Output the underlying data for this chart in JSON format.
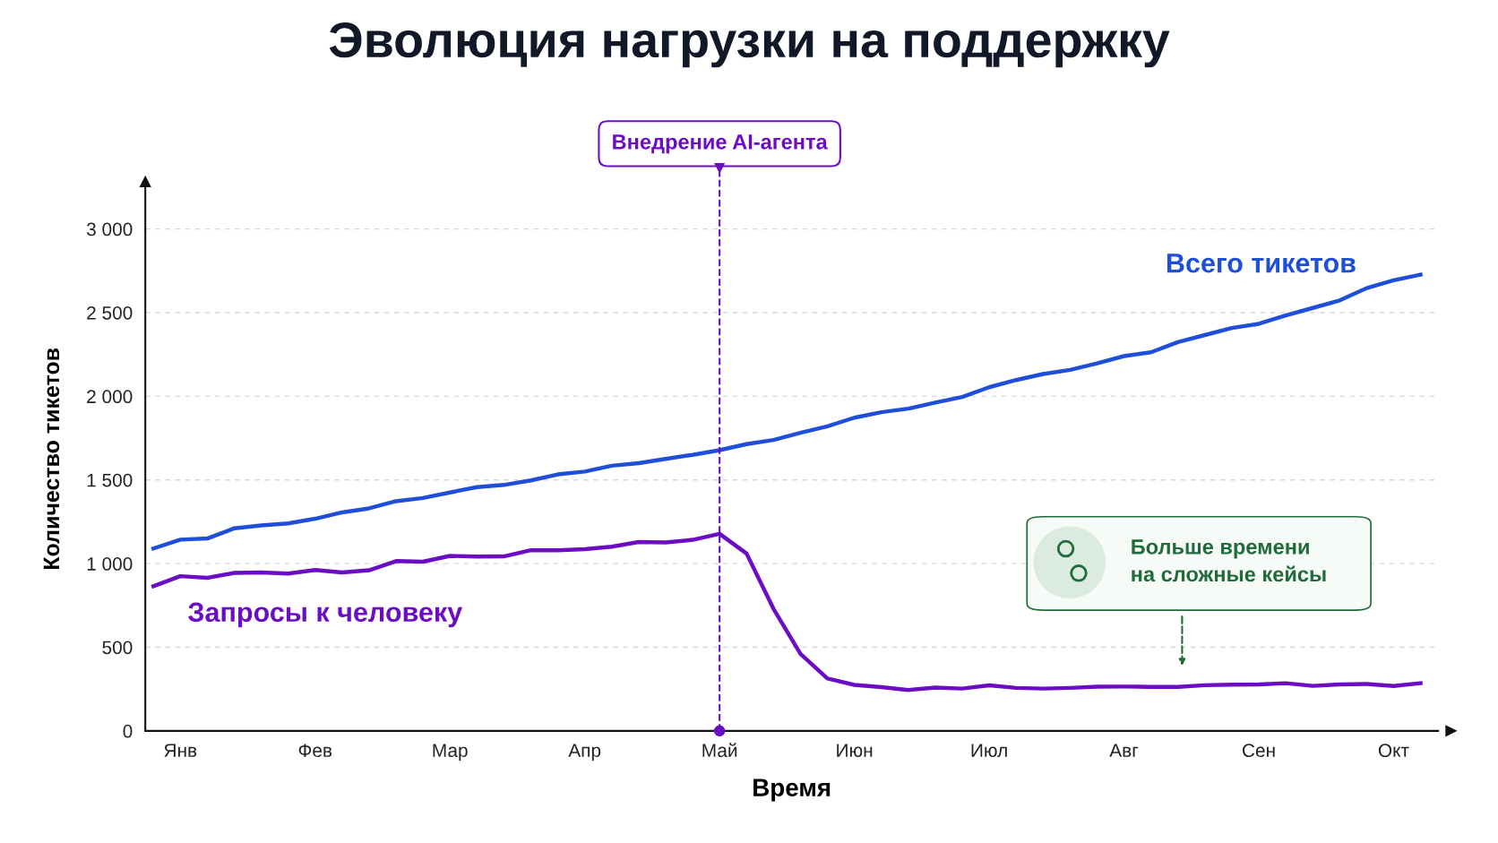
{
  "chart_data": {
    "type": "line",
    "title": "Эволюция нагрузки на поддержку",
    "xlabel": "Время",
    "ylabel": "Количество тикетов",
    "categories": [
      null,
      "Янв",
      null,
      null,
      null,
      null,
      "Фев",
      null,
      null,
      null,
      null,
      "Мар",
      null,
      null,
      null,
      null,
      "Апр",
      null,
      null,
      null,
      null,
      "Май",
      null,
      null,
      null,
      null,
      "Июн",
      null,
      null,
      null,
      null,
      "Июл",
      null,
      null,
      null,
      null,
      "Авг",
      null,
      null,
      null,
      null,
      "Сен",
      null,
      null,
      null,
      null,
      "Окт",
      null
    ],
    "ylim": [
      0,
      3250
    ],
    "yticks": [
      0,
      500,
      {
        "value": 1000,
        "label": "1 000"
      },
      {
        "value": 1500,
        "label": "1 500"
      },
      {
        "value": 2000,
        "label": "2 000"
      },
      {
        "value": 2500,
        "label": "2 500"
      },
      {
        "value": 3000,
        "label": "3 000"
      }
    ],
    "grid": "y",
    "legend": false,
    "marker": "none",
    "line_style": "solid",
    "series": [
      {
        "name": "Всего тикетов",
        "color": "#1f4fd8",
        "values": [
          1090,
          1143,
          1150,
          1211,
          1228,
          1240,
          1268,
          1306,
          1330,
          1373,
          1392,
          1425,
          1457,
          1470,
          1497,
          1533,
          1550,
          1585,
          1600,
          1626,
          1650,
          1678,
          1714,
          1739,
          1782,
          1820,
          1872,
          1905,
          1926,
          1962,
          1996,
          2054,
          2097,
          2133,
          2158,
          2197,
          2240,
          2263,
          2324,
          2366,
          2408,
          2433,
          2483,
          2528,
          2573,
          2646,
          2693,
          2727
        ]
      },
      {
        "name": "Запросы к человеку",
        "color": "#6a0dc4",
        "values": [
          865,
          925,
          915,
          944,
          947,
          940,
          962,
          947,
          960,
          1015,
          1011,
          1046,
          1042,
          1043,
          1080,
          1080,
          1086,
          1101,
          1129,
          1126,
          1142,
          1178,
          1060,
          730,
          460,
          313,
          275,
          262,
          244,
          259,
          253,
          272,
          257,
          253,
          257,
          264,
          265,
          263,
          263,
          273,
          276,
          278,
          285,
          269,
          278,
          280,
          268,
          285
        ]
      }
    ],
    "ref_lines": [
      {
        "axis": "x",
        "value": "Май",
        "label": "Внедрение AI-агента",
        "color": "#6a0dc4",
        "line_style": "dashed"
      }
    ],
    "annotations": [
      "Больше времени\nна сложные кейсы"
    ]
  }
}
